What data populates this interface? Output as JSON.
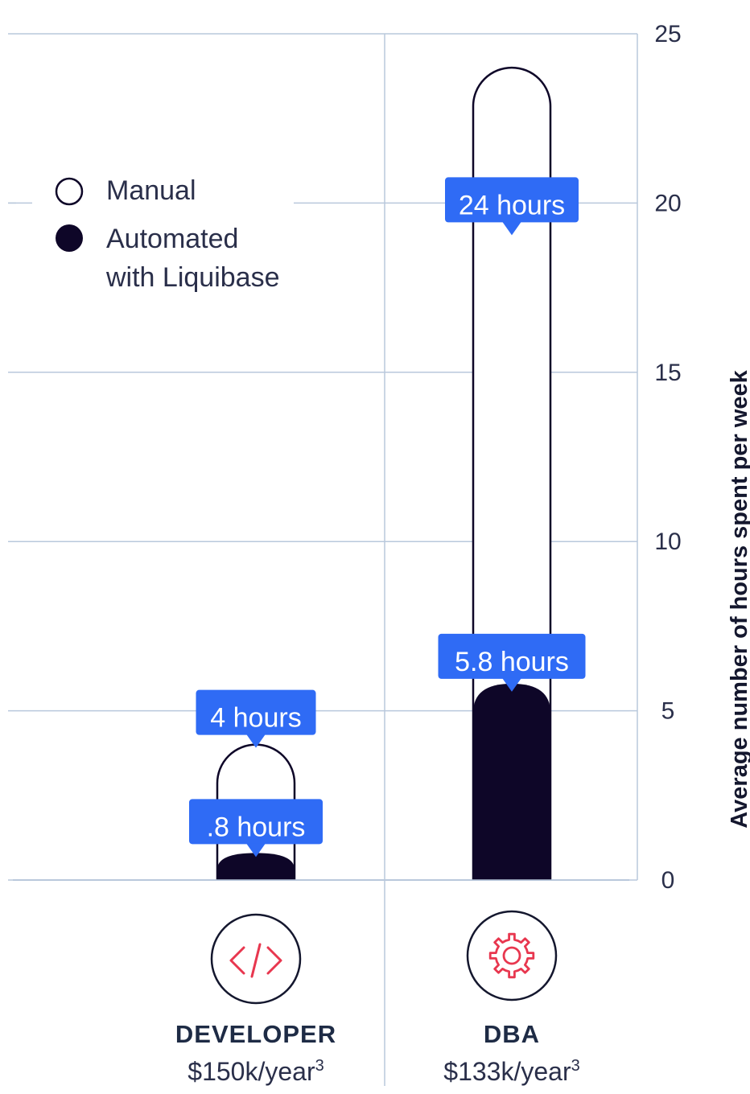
{
  "chart_data": {
    "type": "bar",
    "categories": [
      "DEVELOPER",
      "DBA"
    ],
    "series": [
      {
        "name": "Manual",
        "values": [
          4,
          24
        ]
      },
      {
        "name": "Automated with Liquibase",
        "values": [
          0.8,
          5.8
        ]
      }
    ],
    "labels": {
      "Manual": [
        "4 hours",
        "24 hours"
      ],
      "Automated with Liquibase": [
        ".8 hours",
        "5.8 hours"
      ]
    },
    "ylabel": "Average number of hours spent per week",
    "ylim": [
      0,
      25
    ],
    "yticks": [
      "0",
      "5",
      "10",
      "15",
      "20",
      "25"
    ],
    "y_axis_side": "right",
    "grid": true,
    "legend_position": "top-left"
  },
  "legend": {
    "manual": "Manual",
    "automated_line1": "Automated",
    "automated_line2": "with Liquibase"
  },
  "roles": [
    {
      "name": "DEVELOPER",
      "salary": "$150k/year",
      "footnote": "3",
      "icon": "code-icon"
    },
    {
      "name": "DBA",
      "salary": "$133k/year",
      "footnote": "3",
      "icon": "gear-icon"
    }
  ],
  "colors": {
    "accent": "#2f6bf5",
    "bar_fill": "#0e0628",
    "gridline": "#b9c8dc",
    "icon_red": "#e8374f",
    "text": "#2a2f4a"
  }
}
